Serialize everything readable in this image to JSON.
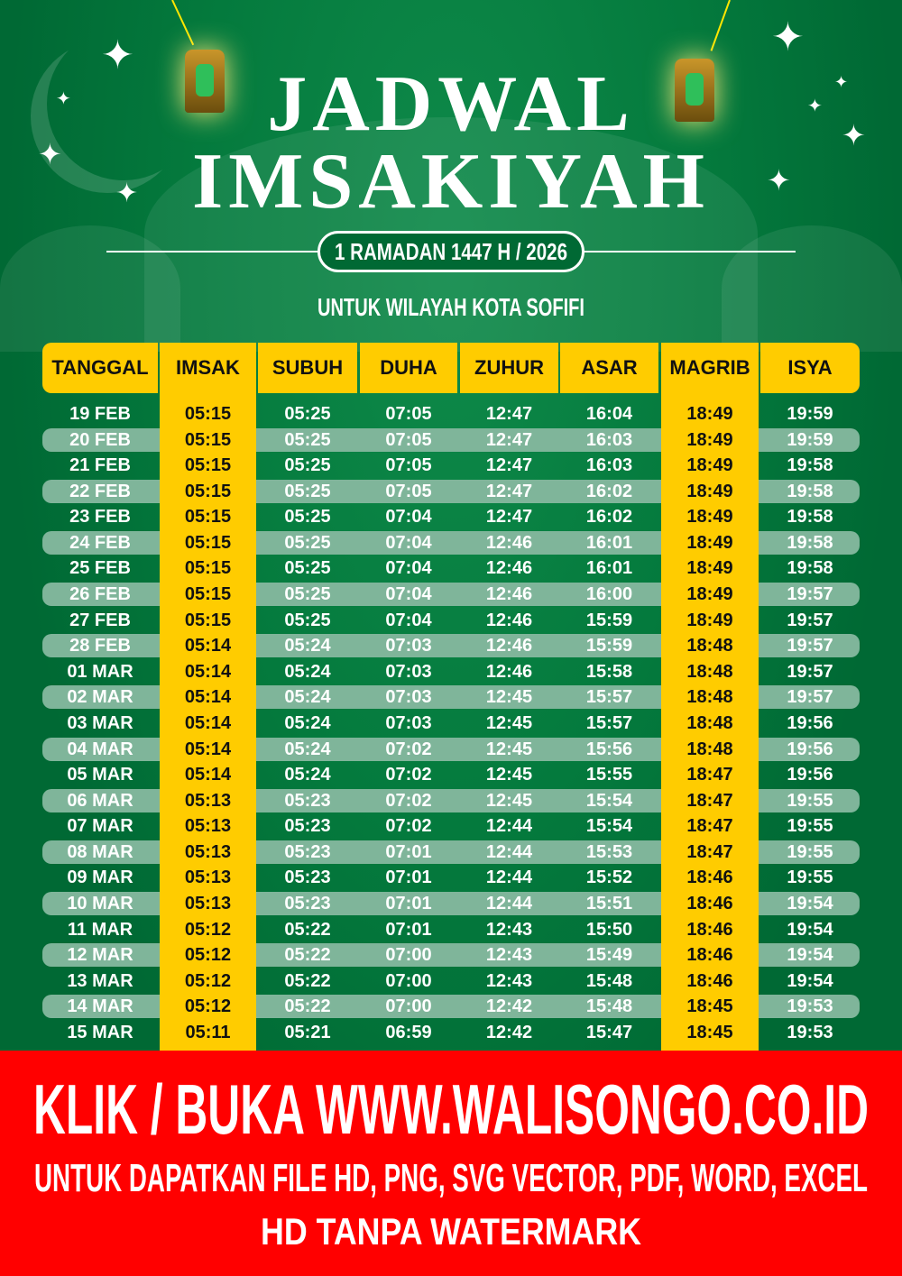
{
  "header": {
    "title_line1": "JADWAL",
    "title_line2": "IMSAKIYAH",
    "period": "1 RAMADAN 1447 H / 2026",
    "region": "UNTUK WILAYAH KOTA SOFIFI"
  },
  "colors": {
    "background": "#006934",
    "highlight": "#ffcc00",
    "stripe": "#7fb59a",
    "banner": "#ff0000"
  },
  "table": {
    "columns": [
      "TANGGAL",
      "IMSAK",
      "SUBUH",
      "DUHA",
      "ZUHUR",
      "ASAR",
      "MAGRIB",
      "ISYA"
    ],
    "rows": [
      [
        "19 FEB",
        "05:15",
        "05:25",
        "07:05",
        "12:47",
        "16:04",
        "18:49",
        "19:59"
      ],
      [
        "20 FEB",
        "05:15",
        "05:25",
        "07:05",
        "12:47",
        "16:03",
        "18:49",
        "19:59"
      ],
      [
        "21 FEB",
        "05:15",
        "05:25",
        "07:05",
        "12:47",
        "16:03",
        "18:49",
        "19:58"
      ],
      [
        "22 FEB",
        "05:15",
        "05:25",
        "07:05",
        "12:47",
        "16:02",
        "18:49",
        "19:58"
      ],
      [
        "23 FEB",
        "05:15",
        "05:25",
        "07:04",
        "12:47",
        "16:02",
        "18:49",
        "19:58"
      ],
      [
        "24 FEB",
        "05:15",
        "05:25",
        "07:04",
        "12:46",
        "16:01",
        "18:49",
        "19:58"
      ],
      [
        "25 FEB",
        "05:15",
        "05:25",
        "07:04",
        "12:46",
        "16:01",
        "18:49",
        "19:58"
      ],
      [
        "26 FEB",
        "05:15",
        "05:25",
        "07:04",
        "12:46",
        "16:00",
        "18:49",
        "19:57"
      ],
      [
        "27 FEB",
        "05:15",
        "05:25",
        "07:04",
        "12:46",
        "15:59",
        "18:49",
        "19:57"
      ],
      [
        "28 FEB",
        "05:14",
        "05:24",
        "07:03",
        "12:46",
        "15:59",
        "18:48",
        "19:57"
      ],
      [
        "01 MAR",
        "05:14",
        "05:24",
        "07:03",
        "12:46",
        "15:58",
        "18:48",
        "19:57"
      ],
      [
        "02 MAR",
        "05:14",
        "05:24",
        "07:03",
        "12:45",
        "15:57",
        "18:48",
        "19:57"
      ],
      [
        "03 MAR",
        "05:14",
        "05:24",
        "07:03",
        "12:45",
        "15:57",
        "18:48",
        "19:56"
      ],
      [
        "04 MAR",
        "05:14",
        "05:24",
        "07:02",
        "12:45",
        "15:56",
        "18:48",
        "19:56"
      ],
      [
        "05 MAR",
        "05:14",
        "05:24",
        "07:02",
        "12:45",
        "15:55",
        "18:47",
        "19:56"
      ],
      [
        "06 MAR",
        "05:13",
        "05:23",
        "07:02",
        "12:45",
        "15:54",
        "18:47",
        "19:55"
      ],
      [
        "07 MAR",
        "05:13",
        "05:23",
        "07:02",
        "12:44",
        "15:54",
        "18:47",
        "19:55"
      ],
      [
        "08 MAR",
        "05:13",
        "05:23",
        "07:01",
        "12:44",
        "15:53",
        "18:47",
        "19:55"
      ],
      [
        "09 MAR",
        "05:13",
        "05:23",
        "07:01",
        "12:44",
        "15:52",
        "18:46",
        "19:55"
      ],
      [
        "10 MAR",
        "05:13",
        "05:23",
        "07:01",
        "12:44",
        "15:51",
        "18:46",
        "19:54"
      ],
      [
        "11 MAR",
        "05:12",
        "05:22",
        "07:01",
        "12:43",
        "15:50",
        "18:46",
        "19:54"
      ],
      [
        "12 MAR",
        "05:12",
        "05:22",
        "07:00",
        "12:43",
        "15:49",
        "18:46",
        "19:54"
      ],
      [
        "13 MAR",
        "05:12",
        "05:22",
        "07:00",
        "12:43",
        "15:48",
        "18:46",
        "19:54"
      ],
      [
        "14 MAR",
        "05:12",
        "05:22",
        "07:00",
        "12:42",
        "15:48",
        "18:45",
        "19:53"
      ],
      [
        "15 MAR",
        "05:11",
        "05:21",
        "06:59",
        "12:42",
        "15:47",
        "18:45",
        "19:53"
      ]
    ]
  },
  "banner": {
    "line1": "KLIK / BUKA WWW.WALISONGO.CO.ID",
    "line2": "UNTUK DAPATKAN FILE HD, PNG, SVG VECTOR, PDF, WORD, EXCEL",
    "line3": "HD TANPA WATERMARK"
  }
}
